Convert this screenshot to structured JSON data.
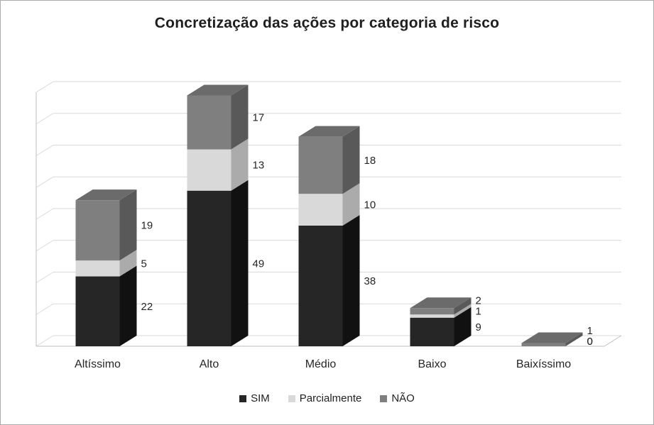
{
  "chart_data": {
    "type": "bar",
    "subtype": "3d-stacked-column",
    "title": "Concretização das ações por categoria de risco",
    "categories": [
      "Altíssimo",
      "Alto",
      "Médio",
      "Baixo",
      "Baixíssimo"
    ],
    "series": [
      {
        "name": "SIM",
        "color": "#262626",
        "side_color": "#111111",
        "top_color": "#3d3d3d",
        "values": [
          22,
          49,
          38,
          9,
          0
        ]
      },
      {
        "name": "Parcialmente",
        "color": "#d9d9d9",
        "side_color": "#ababab",
        "top_color": "#c8c8c8",
        "values": [
          5,
          13,
          10,
          1,
          0
        ]
      },
      {
        "name": "NÃO",
        "color": "#7f7f7f",
        "side_color": "#595959",
        "top_color": "#6b6b6b",
        "values": [
          19,
          17,
          18,
          2,
          1
        ]
      }
    ],
    "ylim": [
      0,
      80
    ],
    "y_step": 10,
    "grid": true,
    "y_tick_labels_visible": false,
    "data_labels": true,
    "legend_position": "bottom",
    "colors": {
      "gridline": "#d9d9d9",
      "axis_line": "#bfbfbf",
      "label_text": "#262626",
      "title_text": "#1f1f1f"
    }
  }
}
